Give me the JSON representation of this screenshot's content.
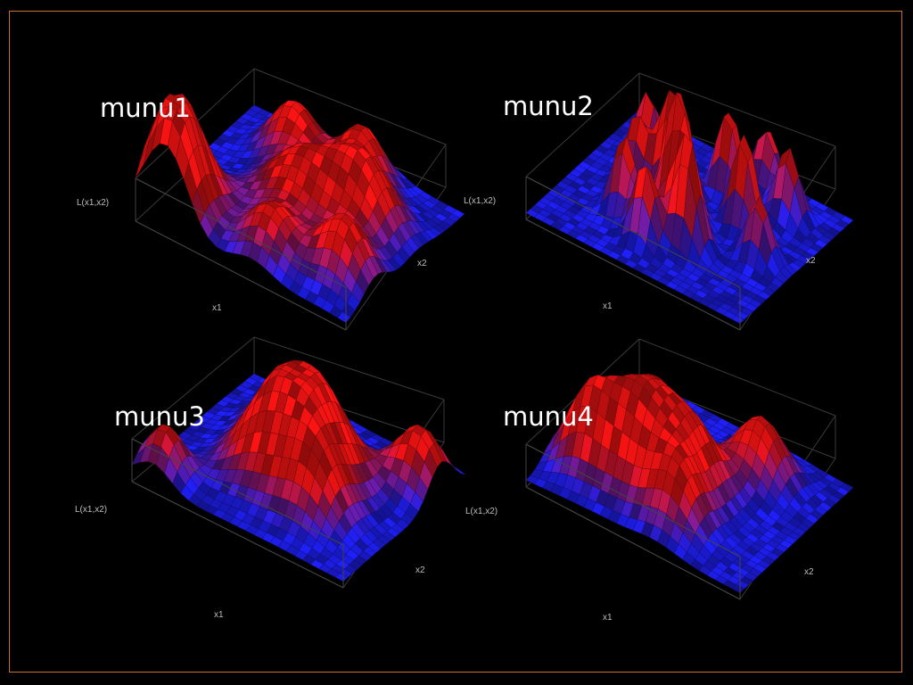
{
  "colors": {
    "background": "#000000",
    "frame": "#c8742e",
    "peak": "#ff1414",
    "valley": "#2020ff"
  },
  "chart_data": [
    {
      "type": "surface",
      "title": "munu1",
      "xlabel": "x1",
      "ylabel": "x2",
      "zlabel": "L(x1,x2)"
    },
    {
      "type": "surface",
      "title": "munu2",
      "xlabel": "x1",
      "ylabel": "x2",
      "zlabel": "L(x1,x2)"
    },
    {
      "type": "surface",
      "title": "munu3",
      "xlabel": "x1",
      "ylabel": "x2",
      "zlabel": "L(x1,x2)"
    },
    {
      "type": "surface",
      "title": "munu4",
      "xlabel": "x1",
      "ylabel": "x2",
      "zlabel": "L(x1,x2)"
    }
  ]
}
